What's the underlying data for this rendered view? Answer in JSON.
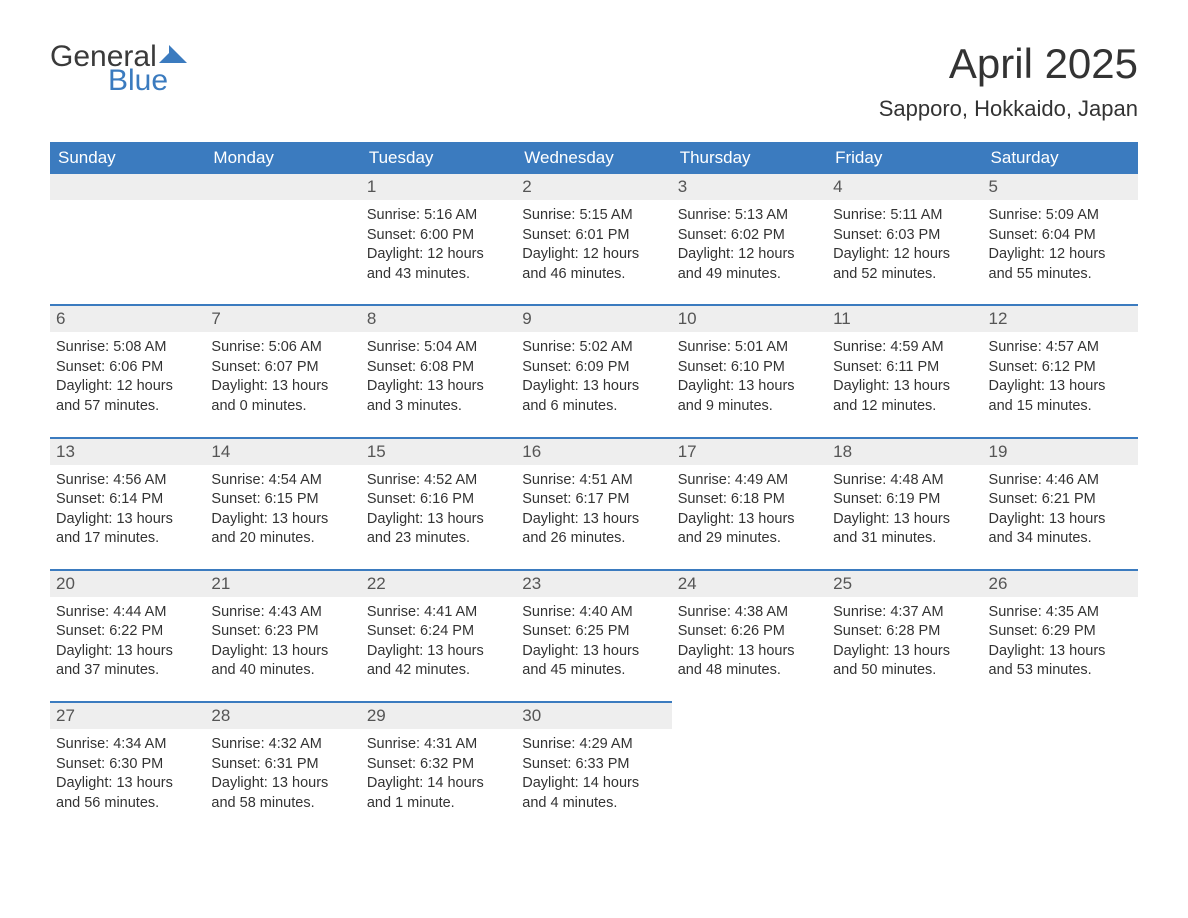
{
  "logo": {
    "text_general": "General",
    "text_blue": "Blue",
    "mark_color": "#3b7bbf"
  },
  "title": "April 2025",
  "location": "Sapporo, Hokkaido, Japan",
  "colors": {
    "header_bg": "#3b7bbf",
    "header_text": "#ffffff",
    "daynum_bg": "#eeeeee",
    "daynum_border": "#3b7bbf",
    "body_text": "#333333",
    "page_bg": "#ffffff"
  },
  "day_headers": [
    "Sunday",
    "Monday",
    "Tuesday",
    "Wednesday",
    "Thursday",
    "Friday",
    "Saturday"
  ],
  "weeks": [
    [
      {
        "blank": true
      },
      {
        "blank": true
      },
      {
        "num": "1",
        "sunrise": "Sunrise: 5:16 AM",
        "sunset": "Sunset: 6:00 PM",
        "daylight1": "Daylight: 12 hours",
        "daylight2": "and 43 minutes."
      },
      {
        "num": "2",
        "sunrise": "Sunrise: 5:15 AM",
        "sunset": "Sunset: 6:01 PM",
        "daylight1": "Daylight: 12 hours",
        "daylight2": "and 46 minutes."
      },
      {
        "num": "3",
        "sunrise": "Sunrise: 5:13 AM",
        "sunset": "Sunset: 6:02 PM",
        "daylight1": "Daylight: 12 hours",
        "daylight2": "and 49 minutes."
      },
      {
        "num": "4",
        "sunrise": "Sunrise: 5:11 AM",
        "sunset": "Sunset: 6:03 PM",
        "daylight1": "Daylight: 12 hours",
        "daylight2": "and 52 minutes."
      },
      {
        "num": "5",
        "sunrise": "Sunrise: 5:09 AM",
        "sunset": "Sunset: 6:04 PM",
        "daylight1": "Daylight: 12 hours",
        "daylight2": "and 55 minutes."
      }
    ],
    [
      {
        "num": "6",
        "sunrise": "Sunrise: 5:08 AM",
        "sunset": "Sunset: 6:06 PM",
        "daylight1": "Daylight: 12 hours",
        "daylight2": "and 57 minutes."
      },
      {
        "num": "7",
        "sunrise": "Sunrise: 5:06 AM",
        "sunset": "Sunset: 6:07 PM",
        "daylight1": "Daylight: 13 hours",
        "daylight2": "and 0 minutes."
      },
      {
        "num": "8",
        "sunrise": "Sunrise: 5:04 AM",
        "sunset": "Sunset: 6:08 PM",
        "daylight1": "Daylight: 13 hours",
        "daylight2": "and 3 minutes."
      },
      {
        "num": "9",
        "sunrise": "Sunrise: 5:02 AM",
        "sunset": "Sunset: 6:09 PM",
        "daylight1": "Daylight: 13 hours",
        "daylight2": "and 6 minutes."
      },
      {
        "num": "10",
        "sunrise": "Sunrise: 5:01 AM",
        "sunset": "Sunset: 6:10 PM",
        "daylight1": "Daylight: 13 hours",
        "daylight2": "and 9 minutes."
      },
      {
        "num": "11",
        "sunrise": "Sunrise: 4:59 AM",
        "sunset": "Sunset: 6:11 PM",
        "daylight1": "Daylight: 13 hours",
        "daylight2": "and 12 minutes."
      },
      {
        "num": "12",
        "sunrise": "Sunrise: 4:57 AM",
        "sunset": "Sunset: 6:12 PM",
        "daylight1": "Daylight: 13 hours",
        "daylight2": "and 15 minutes."
      }
    ],
    [
      {
        "num": "13",
        "sunrise": "Sunrise: 4:56 AM",
        "sunset": "Sunset: 6:14 PM",
        "daylight1": "Daylight: 13 hours",
        "daylight2": "and 17 minutes."
      },
      {
        "num": "14",
        "sunrise": "Sunrise: 4:54 AM",
        "sunset": "Sunset: 6:15 PM",
        "daylight1": "Daylight: 13 hours",
        "daylight2": "and 20 minutes."
      },
      {
        "num": "15",
        "sunrise": "Sunrise: 4:52 AM",
        "sunset": "Sunset: 6:16 PM",
        "daylight1": "Daylight: 13 hours",
        "daylight2": "and 23 minutes."
      },
      {
        "num": "16",
        "sunrise": "Sunrise: 4:51 AM",
        "sunset": "Sunset: 6:17 PM",
        "daylight1": "Daylight: 13 hours",
        "daylight2": "and 26 minutes."
      },
      {
        "num": "17",
        "sunrise": "Sunrise: 4:49 AM",
        "sunset": "Sunset: 6:18 PM",
        "daylight1": "Daylight: 13 hours",
        "daylight2": "and 29 minutes."
      },
      {
        "num": "18",
        "sunrise": "Sunrise: 4:48 AM",
        "sunset": "Sunset: 6:19 PM",
        "daylight1": "Daylight: 13 hours",
        "daylight2": "and 31 minutes."
      },
      {
        "num": "19",
        "sunrise": "Sunrise: 4:46 AM",
        "sunset": "Sunset: 6:21 PM",
        "daylight1": "Daylight: 13 hours",
        "daylight2": "and 34 minutes."
      }
    ],
    [
      {
        "num": "20",
        "sunrise": "Sunrise: 4:44 AM",
        "sunset": "Sunset: 6:22 PM",
        "daylight1": "Daylight: 13 hours",
        "daylight2": "and 37 minutes."
      },
      {
        "num": "21",
        "sunrise": "Sunrise: 4:43 AM",
        "sunset": "Sunset: 6:23 PM",
        "daylight1": "Daylight: 13 hours",
        "daylight2": "and 40 minutes."
      },
      {
        "num": "22",
        "sunrise": "Sunrise: 4:41 AM",
        "sunset": "Sunset: 6:24 PM",
        "daylight1": "Daylight: 13 hours",
        "daylight2": "and 42 minutes."
      },
      {
        "num": "23",
        "sunrise": "Sunrise: 4:40 AM",
        "sunset": "Sunset: 6:25 PM",
        "daylight1": "Daylight: 13 hours",
        "daylight2": "and 45 minutes."
      },
      {
        "num": "24",
        "sunrise": "Sunrise: 4:38 AM",
        "sunset": "Sunset: 6:26 PM",
        "daylight1": "Daylight: 13 hours",
        "daylight2": "and 48 minutes."
      },
      {
        "num": "25",
        "sunrise": "Sunrise: 4:37 AM",
        "sunset": "Sunset: 6:28 PM",
        "daylight1": "Daylight: 13 hours",
        "daylight2": "and 50 minutes."
      },
      {
        "num": "26",
        "sunrise": "Sunrise: 4:35 AM",
        "sunset": "Sunset: 6:29 PM",
        "daylight1": "Daylight: 13 hours",
        "daylight2": "and 53 minutes."
      }
    ],
    [
      {
        "num": "27",
        "sunrise": "Sunrise: 4:34 AM",
        "sunset": "Sunset: 6:30 PM",
        "daylight1": "Daylight: 13 hours",
        "daylight2": "and 56 minutes."
      },
      {
        "num": "28",
        "sunrise": "Sunrise: 4:32 AM",
        "sunset": "Sunset: 6:31 PM",
        "daylight1": "Daylight: 13 hours",
        "daylight2": "and 58 minutes."
      },
      {
        "num": "29",
        "sunrise": "Sunrise: 4:31 AM",
        "sunset": "Sunset: 6:32 PM",
        "daylight1": "Daylight: 14 hours",
        "daylight2": "and 1 minute."
      },
      {
        "num": "30",
        "sunrise": "Sunrise: 4:29 AM",
        "sunset": "Sunset: 6:33 PM",
        "daylight1": "Daylight: 14 hours",
        "daylight2": "and 4 minutes."
      },
      {
        "blank": true,
        "no_bar": true
      },
      {
        "blank": true,
        "no_bar": true
      },
      {
        "blank": true,
        "no_bar": true
      }
    ]
  ]
}
